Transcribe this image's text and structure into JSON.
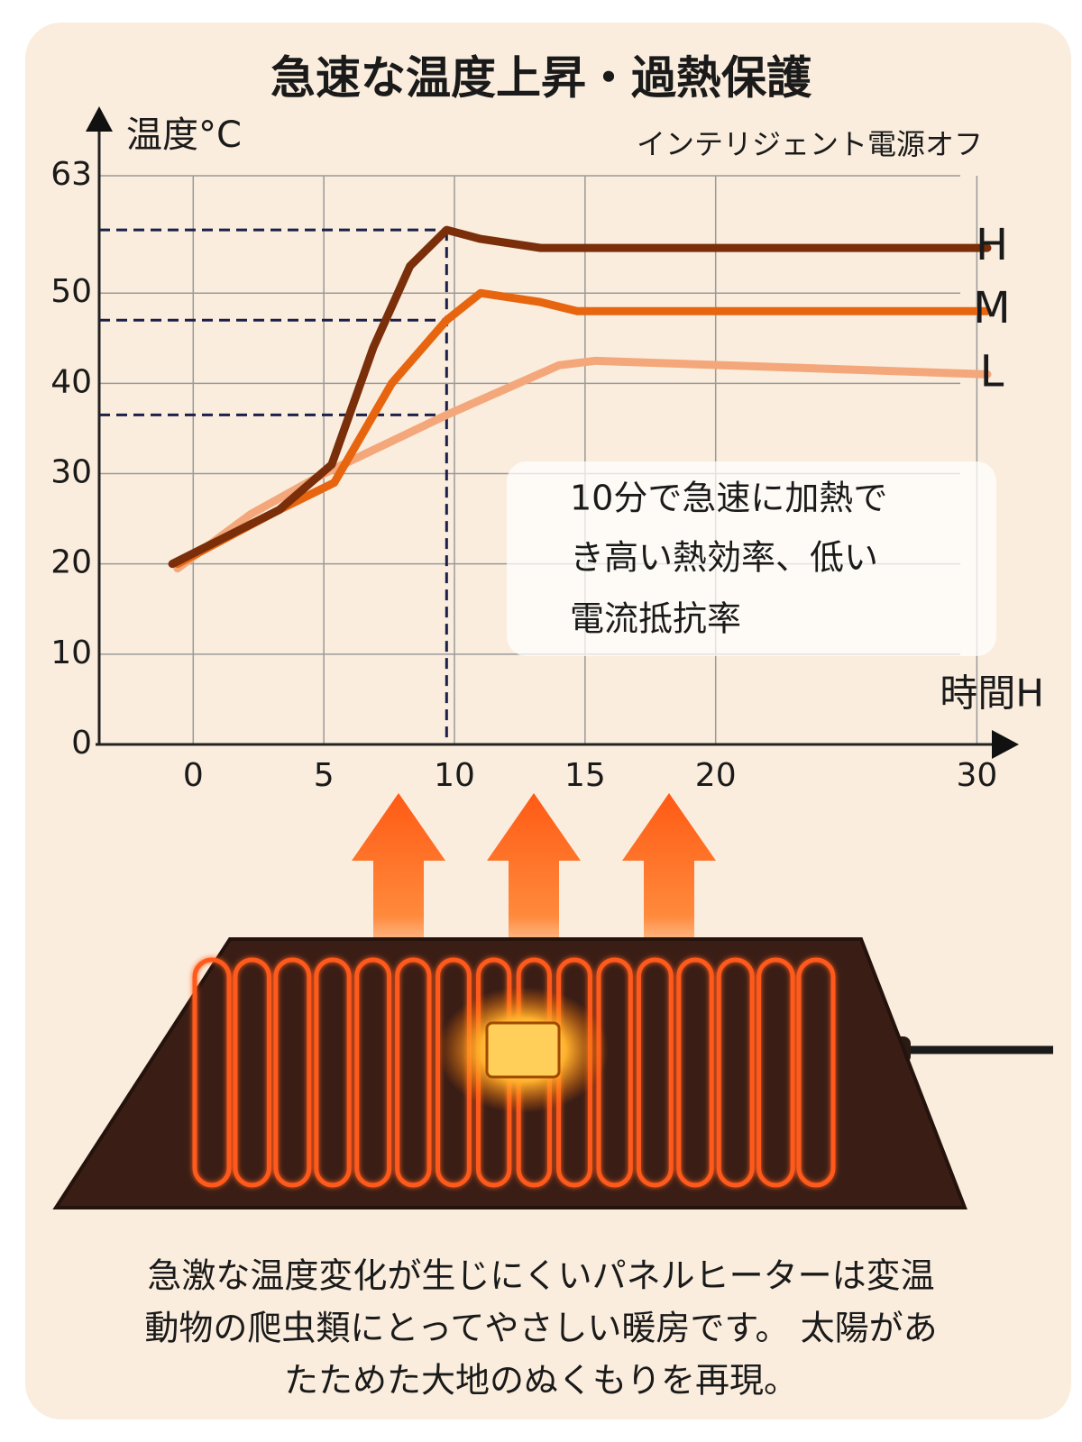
{
  "title": "急速な温度上昇・過熱保護",
  "chart_data": {
    "type": "line",
    "y_label": "温度°C",
    "x_label": "時間H",
    "annotation": "インテリジェント電源オフ",
    "xlim": [
      -3.6,
      30.4
    ],
    "xticks": [
      0,
      5,
      10,
      15,
      20,
      30
    ],
    "ylim": [
      0,
      63
    ],
    "yticks": [
      0,
      10,
      20,
      30,
      40,
      50,
      63
    ],
    "grid": true,
    "guide_x": 9.7,
    "guide_y": [
      57,
      47,
      36.5
    ],
    "series": [
      {
        "name": "H",
        "color": "#7a2e0a",
        "x": [
          -0.8,
          3.3,
          5.3,
          6.9,
          8.3,
          9.7,
          11,
          13.3,
          30.4
        ],
        "values": [
          20,
          26,
          31,
          44,
          53,
          57,
          56,
          55,
          55
        ]
      },
      {
        "name": "M",
        "color": "#e8650f",
        "x": [
          -0.6,
          3.3,
          5.4,
          7.6,
          9.7,
          11,
          13.3,
          14.7,
          30.4
        ],
        "values": [
          20,
          26,
          29,
          40,
          47,
          50,
          49,
          48,
          48
        ]
      },
      {
        "name": "L",
        "color": "#f4a77a",
        "x": [
          -0.6,
          2.2,
          5,
          9.7,
          14,
          15.4,
          30.4
        ],
        "values": [
          19.5,
          25.5,
          30,
          36.5,
          42,
          42.5,
          41
        ]
      }
    ]
  },
  "callout": [
    "10分で急速に加熱で",
    "き高い熱効率、低い",
    "電流抵抗率"
  ],
  "footer": [
    "急激な温度変化が生じにくいパネルヒーターは変温",
    "動物の爬虫類にとってやさしい暖房です。 太陽があ",
    "たためた大地のぬくもりを再現。"
  ]
}
